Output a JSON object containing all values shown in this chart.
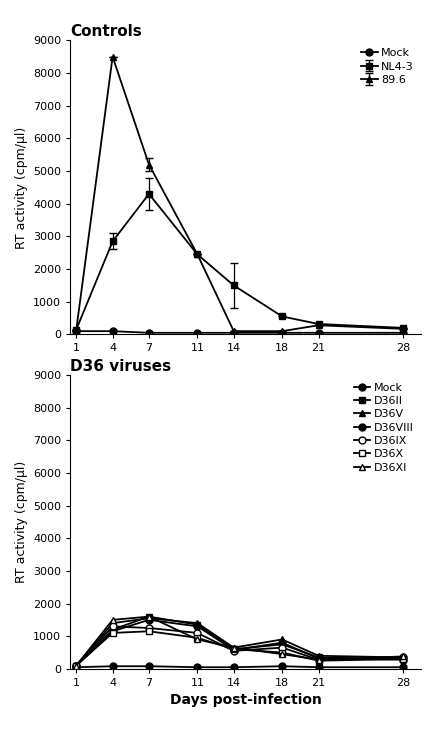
{
  "days": [
    1,
    4,
    7,
    11,
    14,
    18,
    21,
    28
  ],
  "controls": {
    "title": "Controls",
    "mock": {
      "label": "Mock",
      "values": [
        100,
        100,
        50,
        50,
        50,
        50,
        50,
        50
      ],
      "yerr": [
        0,
        0,
        0,
        0,
        0,
        0,
        0,
        0
      ],
      "marker": "o",
      "filled": true
    },
    "nl43": {
      "label": "NL4-3",
      "values": [
        150,
        2850,
        4300,
        2450,
        1500,
        550,
        320,
        200
      ],
      "yerr": [
        0,
        250,
        500,
        0,
        700,
        0,
        0,
        0
      ],
      "marker": "s",
      "filled": true
    },
    "896": {
      "label": "89.6",
      "values": [
        150,
        8500,
        5200,
        2450,
        100,
        100,
        280,
        170
      ],
      "yerr": [
        0,
        0,
        200,
        0,
        0,
        0,
        0,
        0
      ],
      "marker": "^",
      "filled": true
    }
  },
  "d36": {
    "title": "D36 viruses",
    "mock": {
      "label": "Mock",
      "values": [
        50,
        80,
        80,
        50,
        50,
        80,
        50,
        50
      ],
      "marker": "o",
      "filled": true
    },
    "D36II": {
      "label": "D36II",
      "values": [
        100,
        1200,
        1600,
        1350,
        600,
        750,
        350,
        300
      ],
      "marker": "s",
      "filled": true
    },
    "D36V": {
      "label": "D36V",
      "values": [
        100,
        1400,
        1550,
        1400,
        650,
        900,
        400,
        350
      ],
      "marker": "^",
      "filled": true
    },
    "D36VIII": {
      "label": "D36VIII",
      "values": [
        100,
        1150,
        1500,
        1300,
        580,
        800,
        320,
        280
      ],
      "marker": "o",
      "filled": true
    },
    "D36IX": {
      "label": "D36IX",
      "values": [
        100,
        1300,
        1250,
        1100,
        550,
        650,
        280,
        350
      ],
      "marker": "o",
      "filled": false
    },
    "D36X": {
      "label": "D36X",
      "values": [
        100,
        1100,
        1150,
        950,
        600,
        500,
        250,
        300
      ],
      "marker": "s",
      "filled": false
    },
    "D36XI": {
      "label": "D36XI",
      "values": [
        100,
        1500,
        1600,
        900,
        650,
        450,
        280,
        380
      ],
      "marker": "^",
      "filled": false
    }
  },
  "ylim": [
    0,
    9000
  ],
  "yticks": [
    0,
    1000,
    2000,
    3000,
    4000,
    5000,
    6000,
    7000,
    8000,
    9000
  ],
  "color": "#000000",
  "ylabel": "RT activity (cpm/µl)",
  "xlabel": "Days post-infection",
  "linewidth": 1.3,
  "markersize": 5,
  "legend_fontsize": 8,
  "axis_fontsize": 8,
  "title_fontsize": 11
}
